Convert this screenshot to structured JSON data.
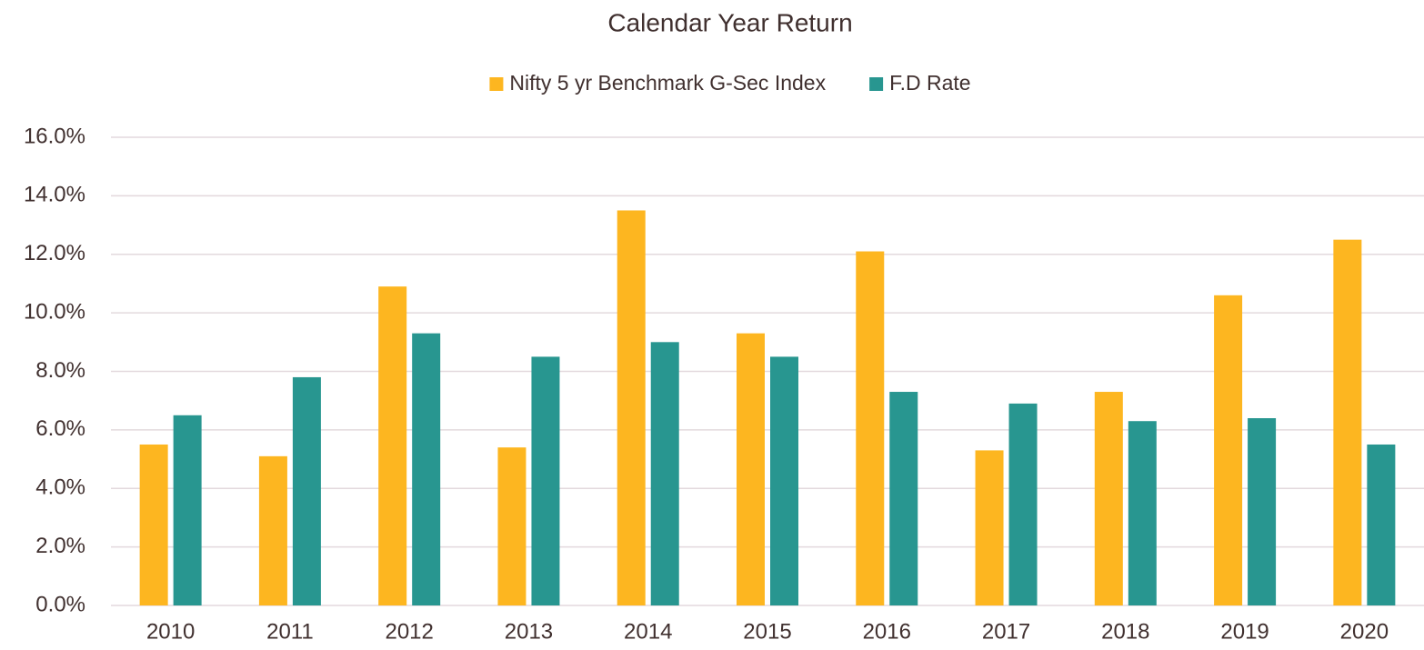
{
  "chart_data": {
    "type": "bar",
    "title": "Calendar Year Return",
    "categories": [
      "2010",
      "2011",
      "2012",
      "2013",
      "2014",
      "2015",
      "2016",
      "2017",
      "2018",
      "2019",
      "2020"
    ],
    "series": [
      {
        "name": "Nifty 5 yr Benchmark G-Sec Index",
        "color": "#fdb620",
        "values": [
          5.5,
          5.1,
          10.9,
          5.4,
          13.5,
          9.3,
          12.1,
          5.3,
          7.3,
          10.6,
          12.5
        ]
      },
      {
        "name": "F.D Rate",
        "color": "#289690",
        "values": [
          6.5,
          7.8,
          9.3,
          8.5,
          9.0,
          8.5,
          7.3,
          6.9,
          6.3,
          6.4,
          5.5
        ]
      }
    ],
    "ylim": [
      0,
      16
    ],
    "yticks": [
      {
        "value": 0,
        "label": "0.0%"
      },
      {
        "value": 2,
        "label": "2.0%"
      },
      {
        "value": 4,
        "label": "4.0%"
      },
      {
        "value": 6,
        "label": "6.0%"
      },
      {
        "value": 8,
        "label": "8.0%"
      },
      {
        "value": 10,
        "label": "10.0%"
      },
      {
        "value": 12,
        "label": "12.0%"
      },
      {
        "value": 14,
        "label": "14.0%"
      },
      {
        "value": 16,
        "label": "16.0%"
      }
    ],
    "grid": true,
    "legend": "top"
  }
}
